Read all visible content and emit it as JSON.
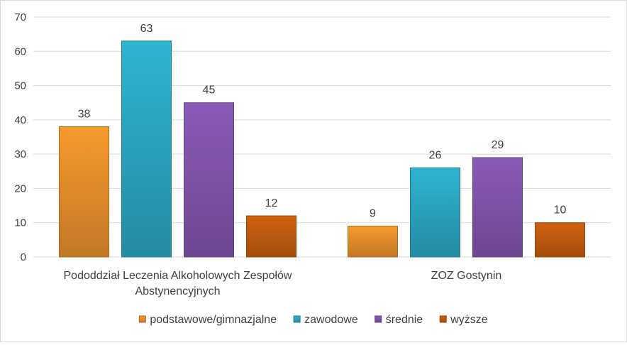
{
  "chart_data": {
    "type": "bar",
    "categories": [
      [
        "Pododdział Leczenia Alkoholowych Zespołów",
        "Abstynencyjnych"
      ],
      [
        "ZOZ Gostynin"
      ]
    ],
    "series": [
      {
        "name": "podstawowe/gimnazjalne",
        "values": [
          38,
          9
        ],
        "color": "#f79a2e"
      },
      {
        "name": "zawodowe",
        "values": [
          63,
          26
        ],
        "color": "#2eb3d1"
      },
      {
        "name": "średnie",
        "values": [
          45,
          29
        ],
        "color": "#8a5bb8"
      },
      {
        "name": "wyższe",
        "values": [
          12,
          10
        ],
        "color": "#d1620f"
      }
    ],
    "ylim": [
      0,
      70
    ],
    "yticks": [
      "0",
      "10",
      "20",
      "30",
      "40",
      "50",
      "60",
      "70"
    ],
    "grid": true,
    "legend": "bottom",
    "title": "",
    "xlabel": "",
    "ylabel": ""
  }
}
